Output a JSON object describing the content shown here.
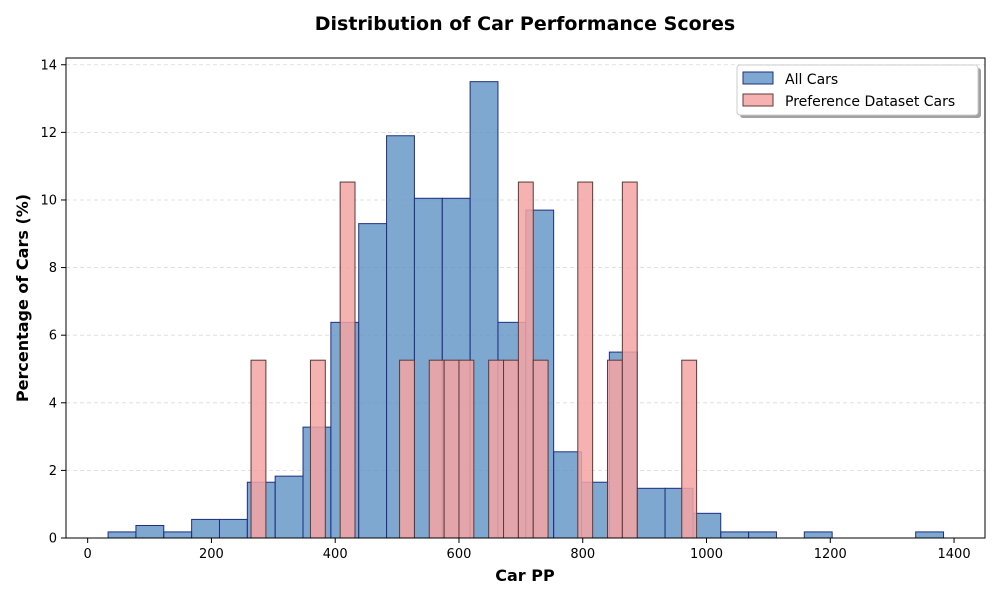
{
  "chart_data": {
    "type": "bar",
    "title": "Distribution of Car Performance Scores",
    "xlabel": "Car PP",
    "ylabel": "Percentage of Cars (%)",
    "xlim": [
      -35,
      1450
    ],
    "ylim": [
      0,
      14.2
    ],
    "x_ticks": [
      0,
      200,
      400,
      600,
      800,
      1000,
      1200,
      1400
    ],
    "y_ticks": [
      0,
      2,
      4,
      6,
      8,
      10,
      12,
      14
    ],
    "grid": "y-dashed",
    "legend_position": "top-right",
    "series": [
      {
        "name": "All Cars",
        "color": "#5b8fc3",
        "edge_color": "#1f2e80",
        "bins": [
          {
            "start": 33,
            "end": 78,
            "value": 0.18
          },
          {
            "start": 78,
            "end": 123,
            "value": 0.37
          },
          {
            "start": 123,
            "end": 168,
            "value": 0.18
          },
          {
            "start": 168,
            "end": 213,
            "value": 0.55
          },
          {
            "start": 213,
            "end": 258,
            "value": 0.55
          },
          {
            "start": 258,
            "end": 303,
            "value": 1.65
          },
          {
            "start": 303,
            "end": 348,
            "value": 1.83
          },
          {
            "start": 348,
            "end": 393,
            "value": 3.28
          },
          {
            "start": 393,
            "end": 438,
            "value": 6.38
          },
          {
            "start": 438,
            "end": 483,
            "value": 9.3
          },
          {
            "start": 483,
            "end": 528,
            "value": 11.9
          },
          {
            "start": 528,
            "end": 573,
            "value": 10.05
          },
          {
            "start": 573,
            "end": 618,
            "value": 10.05
          },
          {
            "start": 618,
            "end": 663,
            "value": 13.5
          },
          {
            "start": 663,
            "end": 708,
            "value": 6.38
          },
          {
            "start": 708,
            "end": 753,
            "value": 9.7
          },
          {
            "start": 753,
            "end": 798,
            "value": 2.55
          },
          {
            "start": 798,
            "end": 843,
            "value": 1.65
          },
          {
            "start": 843,
            "end": 888,
            "value": 5.5
          },
          {
            "start": 888,
            "end": 933,
            "value": 1.47
          },
          {
            "start": 933,
            "end": 978,
            "value": 1.47
          },
          {
            "start": 978,
            "end": 1023,
            "value": 0.73
          },
          {
            "start": 1023,
            "end": 1068,
            "value": 0.18
          },
          {
            "start": 1068,
            "end": 1113,
            "value": 0.18
          },
          {
            "start": 1158,
            "end": 1203,
            "value": 0.18
          },
          {
            "start": 1338,
            "end": 1383,
            "value": 0.18
          }
        ]
      },
      {
        "name": "Preference Dataset Cars",
        "color": "#f4a3a3",
        "edge_color": "#5a3a3a",
        "bins": [
          {
            "start": 264,
            "end": 288,
            "value": 5.26
          },
          {
            "start": 360,
            "end": 384,
            "value": 5.26
          },
          {
            "start": 408,
            "end": 432,
            "value": 10.53
          },
          {
            "start": 504,
            "end": 528,
            "value": 5.26
          },
          {
            "start": 552,
            "end": 576,
            "value": 5.26
          },
          {
            "start": 576,
            "end": 600,
            "value": 5.26
          },
          {
            "start": 600,
            "end": 624,
            "value": 5.26
          },
          {
            "start": 648,
            "end": 672,
            "value": 5.26
          },
          {
            "start": 672,
            "end": 696,
            "value": 5.26
          },
          {
            "start": 696,
            "end": 720,
            "value": 10.53
          },
          {
            "start": 720,
            "end": 744,
            "value": 5.26
          },
          {
            "start": 792,
            "end": 816,
            "value": 10.53
          },
          {
            "start": 840,
            "end": 864,
            "value": 5.26
          },
          {
            "start": 864,
            "end": 888,
            "value": 10.53
          },
          {
            "start": 960,
            "end": 984,
            "value": 5.26
          }
        ]
      }
    ]
  }
}
